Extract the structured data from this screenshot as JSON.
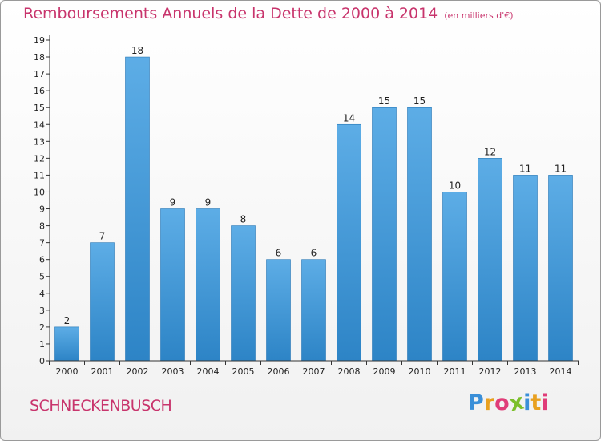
{
  "chart_data": {
    "type": "bar",
    "title": "Remboursements Annuels de la Dette de 2000 à 2014",
    "subtitle": "(en milliers d'€)",
    "categories": [
      "2000",
      "2001",
      "2002",
      "2003",
      "2004",
      "2005",
      "2006",
      "2007",
      "2008",
      "2009",
      "2010",
      "2011",
      "2012",
      "2013",
      "2014"
    ],
    "values": [
      2,
      7,
      18,
      9,
      9,
      8,
      6,
      6,
      14,
      15,
      15,
      10,
      12,
      11,
      11
    ],
    "ylim": [
      0,
      19
    ],
    "yticks": [
      "0",
      "1",
      "2",
      "3",
      "4",
      "5",
      "6",
      "7",
      "8",
      "9",
      "10",
      "11",
      "12",
      "13",
      "14",
      "15",
      "16",
      "17",
      "18",
      "19"
    ],
    "xlabel": "",
    "ylabel": "",
    "grid": false,
    "colors": {
      "bar_light": "#5dade6",
      "bar_dark": "#2d84c6",
      "text": "#c8346c"
    }
  },
  "commune": "SCHNECKENBUSCH",
  "logo": {
    "letters": [
      "P",
      "r",
      "o",
      "x",
      "i",
      "t",
      "i"
    ],
    "colors": [
      "#3a8fd8",
      "#e8a020",
      "#e03c78",
      "#7bbf2a",
      "#3a8fd8",
      "#e8a020",
      "#e03c78"
    ]
  }
}
